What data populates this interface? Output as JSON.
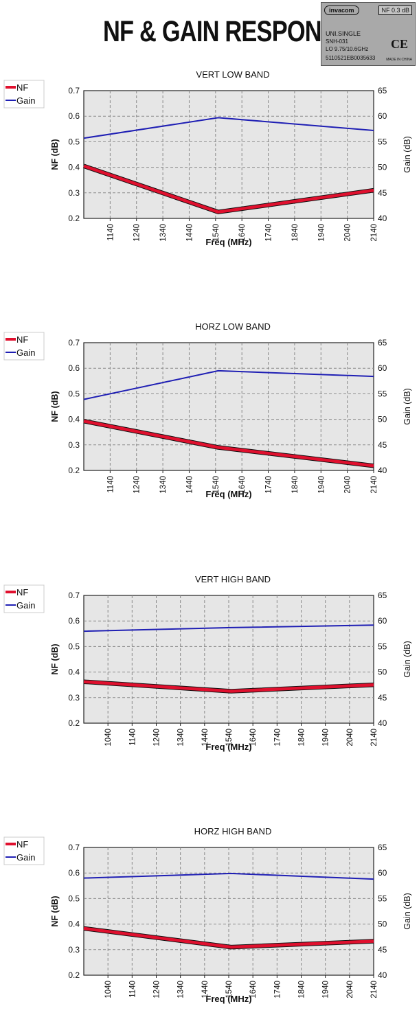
{
  "page_title": "NF & GAIN RESPONSE",
  "label": {
    "brand": "invacom",
    "nf_badge": "NF 0.3 dB",
    "model": "UNI.SINGLE",
    "part": "SNH-031",
    "lo": "LO 9.75/10.6GHz",
    "serial": "5110521EB0035633",
    "made_in": "MADE IN CHINA",
    "ce_mark": "CE"
  },
  "colors": {
    "nf": "#e0102e",
    "gain": "#1f1fb4",
    "plot_bg": "#e6e6e6",
    "grid": "#8a8a8a"
  },
  "chart_data": [
    {
      "type": "line",
      "title": "VERT LOW BAND",
      "xlabel": "Freq (MHz)",
      "ylabel": "NF (dB)",
      "y2label": "Gain (dB)",
      "xlim": [
        1040,
        2140
      ],
      "ylim": [
        0.2,
        0.7
      ],
      "y2lim": [
        40,
        65
      ],
      "x_ticks": [
        "1140",
        "1240",
        "1340",
        "1440",
        "1540",
        "1640",
        "1740",
        "1840",
        "1940",
        "2040",
        "2140"
      ],
      "y_ticks": [
        "0.2",
        "0.3",
        "0.4",
        "0.5",
        "0.6",
        "0.7"
      ],
      "y2_ticks": [
        "40",
        "45",
        "50",
        "55",
        "60",
        "65"
      ],
      "grid": true,
      "legend_position": "left",
      "series": [
        {
          "name": "NF",
          "axis": "left",
          "x": [
            1040,
            1550,
            2140
          ],
          "y": [
            0.405,
            0.225,
            0.31
          ]
        },
        {
          "name": "Gain",
          "axis": "right",
          "x": [
            1040,
            1550,
            2140
          ],
          "y": [
            55.7,
            59.7,
            57.2
          ]
        }
      ]
    },
    {
      "type": "line",
      "title": "HORZ LOW BAND",
      "xlabel": "Freq (MHz)",
      "ylabel": "NF (dB)",
      "y2label": "Gain (dB)",
      "xlim": [
        1040,
        2140
      ],
      "ylim": [
        0.2,
        0.7
      ],
      "y2lim": [
        40,
        65
      ],
      "x_ticks": [
        "1140",
        "1240",
        "1340",
        "1440",
        "1540",
        "1640",
        "1740",
        "1840",
        "1940",
        "2040",
        "2140"
      ],
      "y_ticks": [
        "0.2",
        "0.3",
        "0.4",
        "0.5",
        "0.6",
        "0.7"
      ],
      "y2_ticks": [
        "40",
        "45",
        "50",
        "55",
        "60",
        "65"
      ],
      "grid": true,
      "legend_position": "left",
      "series": [
        {
          "name": "NF",
          "axis": "left",
          "x": [
            1040,
            1550,
            2140
          ],
          "y": [
            0.393,
            0.29,
            0.218
          ]
        },
        {
          "name": "Gain",
          "axis": "right",
          "x": [
            1040,
            1550,
            2140
          ],
          "y": [
            53.9,
            59.5,
            58.4
          ]
        }
      ]
    },
    {
      "type": "line",
      "title": "VERT HIGH BAND",
      "xlabel": "Freq (MHz)",
      "ylabel": "NF (dB)",
      "y2label": "Gain (dB)",
      "xlim": [
        940,
        2140
      ],
      "ylim": [
        0.2,
        0.7
      ],
      "y2lim": [
        40,
        65
      ],
      "x_ticks": [
        "1040",
        "1140",
        "1240",
        "1340",
        "1440",
        "1540",
        "1640",
        "1740",
        "1840",
        "1940",
        "2040",
        "2140"
      ],
      "y_ticks": [
        "0.2",
        "0.3",
        "0.4",
        "0.5",
        "0.6",
        "0.7"
      ],
      "y2_ticks": [
        "40",
        "45",
        "50",
        "55",
        "60",
        "65"
      ],
      "grid": true,
      "legend_position": "left",
      "series": [
        {
          "name": "NF",
          "axis": "left",
          "x": [
            940,
            1550,
            2140
          ],
          "y": [
            0.362,
            0.325,
            0.35
          ]
        },
        {
          "name": "Gain",
          "axis": "right",
          "x": [
            940,
            1550,
            2140
          ],
          "y": [
            58.0,
            58.7,
            59.2
          ]
        }
      ]
    },
    {
      "type": "line",
      "title": "HORZ HIGH BAND",
      "xlabel": "Freq (MHz)",
      "ylabel": "NF (dB)",
      "y2label": "Gain (dB)",
      "xlim": [
        940,
        2140
      ],
      "ylim": [
        0.2,
        0.7
      ],
      "y2lim": [
        40,
        65
      ],
      "x_ticks": [
        "1040",
        "1140",
        "1240",
        "1340",
        "1440",
        "1540",
        "1640",
        "1740",
        "1840",
        "1940",
        "2040",
        "2140"
      ],
      "y_ticks": [
        "0.2",
        "0.3",
        "0.4",
        "0.5",
        "0.6",
        "0.7"
      ],
      "y2_ticks": [
        "40",
        "45",
        "50",
        "55",
        "60",
        "65"
      ],
      "grid": true,
      "legend_position": "left",
      "series": [
        {
          "name": "NF",
          "axis": "left",
          "x": [
            940,
            1550,
            2140
          ],
          "y": [
            0.383,
            0.31,
            0.333
          ]
        },
        {
          "name": "Gain",
          "axis": "right",
          "x": [
            940,
            1550,
            2140
          ],
          "y": [
            59.0,
            59.9,
            58.8
          ]
        }
      ]
    }
  ]
}
